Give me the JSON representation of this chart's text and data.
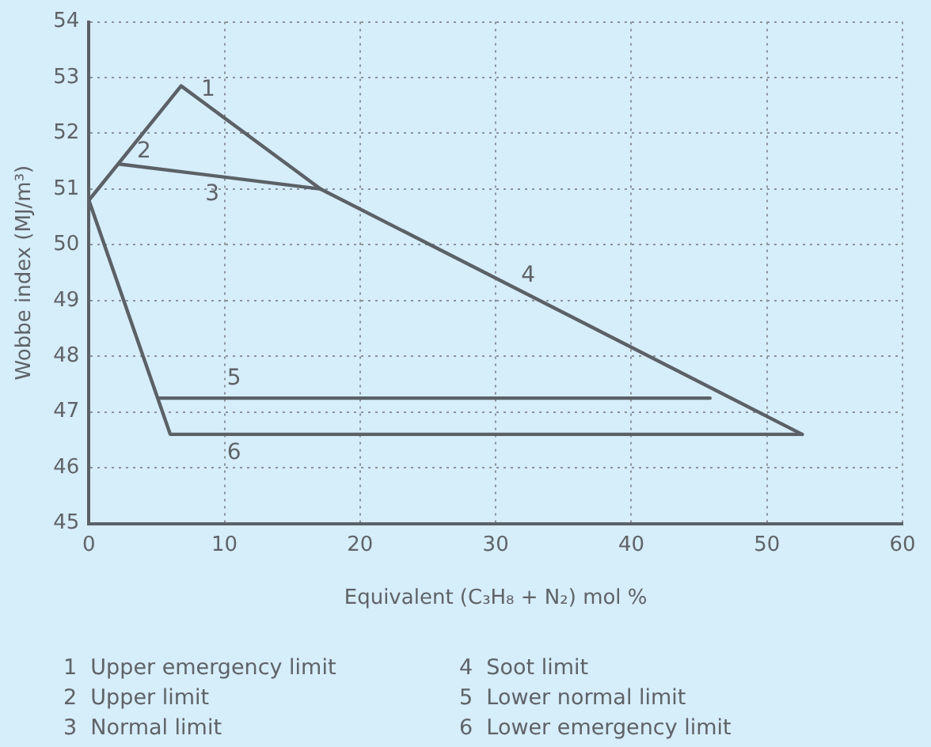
{
  "chart_data": {
    "type": "line",
    "xlabel": "Equivalent (C₃H₈ + N₂) mol %",
    "ylabel": "Wobbe index (MJ/m³)",
    "xlim": [
      0,
      60
    ],
    "xticks": [
      0,
      10,
      20,
      30,
      40,
      50,
      60
    ],
    "ylim": [
      45,
      54
    ],
    "yticks": [
      45,
      46,
      47,
      48,
      49,
      50,
      51,
      52,
      53,
      54
    ],
    "grid": true,
    "legend": false,
    "marker": "none",
    "line_style": "solid",
    "series": [
      {
        "color": "#5b6166",
        "x": [
          0,
          6.8,
          17.1,
          52.6
        ],
        "values": [
          50.8,
          52.85,
          51.0,
          46.6
        ]
      },
      {
        "color": "#5b6166",
        "x": [
          2.2,
          17.1
        ],
        "values": [
          51.45,
          51.0
        ]
      },
      {
        "color": "#5b6166",
        "x": [
          0,
          6.0,
          52.6
        ],
        "values": [
          50.8,
          46.6,
          46.6
        ]
      },
      {
        "color": "#5b6166",
        "x": [
          5.1,
          45.8
        ],
        "values": [
          47.25,
          47.25
        ]
      }
    ],
    "annotations": [
      {
        "text": "1",
        "x": 8.8,
        "y": 52.49
      },
      {
        "text": "2",
        "x": 2.2,
        "y": 51.45
      },
      {
        "text": "3",
        "x": 9.1,
        "y": 51.24
      },
      {
        "text": "4",
        "x": 32.4,
        "y": 49.1
      },
      {
        "text": "5",
        "x": 10.7,
        "y": 47.25
      },
      {
        "text": "6",
        "x": 10.7,
        "y": 46.6
      },
      "1  Upper emergency limit",
      "2  Upper limit",
      "3  Normal limit",
      "4  Soot limit",
      "5  Lower normal limit",
      "6  Lower emergency limit"
    ]
  }
}
